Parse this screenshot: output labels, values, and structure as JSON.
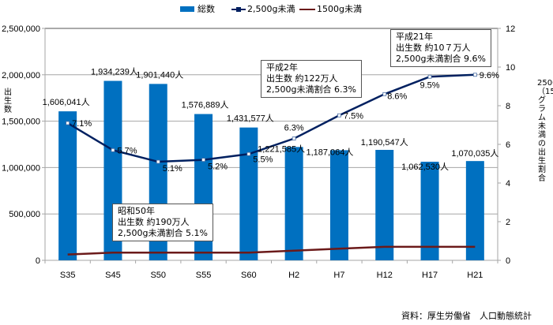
{
  "chart_data": {
    "type": "bar",
    "categories": [
      "S35",
      "S45",
      "S50",
      "S55",
      "S60",
      "H2",
      "H7",
      "H12",
      "H17",
      "H21"
    ],
    "series": [
      {
        "name": "総数",
        "type": "bar",
        "axis": "left",
        "color": "#0070C0",
        "values": [
          1606041,
          1934239,
          1901440,
          1576889,
          1431577,
          1221585,
          1187064,
          1190547,
          1062530,
          1070035
        ],
        "labels": [
          "1,606,041人",
          "1,934,239人",
          "1,901,440人",
          "1,576,889人",
          "1,431,577人",
          "1,221,585人",
          "1,187,064人",
          "1,190,547人",
          "1,062,530人",
          "1,070,035人"
        ]
      },
      {
        "name": "2,500g未満",
        "type": "line",
        "axis": "right",
        "color": "#002060",
        "marker": "square",
        "values": [
          7.1,
          5.7,
          5.1,
          5.2,
          5.5,
          6.3,
          7.5,
          8.6,
          9.5,
          9.6
        ],
        "labels": [
          "7.1%",
          "5.7%",
          "5.1%",
          "5.2%",
          "5.5%",
          "6.3%",
          "7.5%",
          "8.6%",
          "9.5%",
          "9.6%"
        ]
      },
      {
        "name": "1500g未満",
        "type": "line",
        "axis": "right",
        "color": "#6B1A1A",
        "values": [
          0.3,
          0.4,
          0.4,
          0.4,
          0.4,
          0.5,
          0.6,
          0.7,
          0.7,
          0.7
        ]
      }
    ],
    "ylabel": "出生数",
    "y2label": "2500（1500）グラム未満の出生割合",
    "ylim": [
      0,
      2500000
    ],
    "y2lim": [
      0,
      12
    ],
    "yticks": [
      "0",
      "500,000",
      "1,000,000",
      "1,500,000",
      "2,000,000",
      "2,500,000"
    ],
    "y2ticks": [
      "0",
      "2",
      "4",
      "6",
      "8",
      "10",
      "12"
    ],
    "grid": true,
    "legend": "top-center",
    "annotations": [
      {
        "lines": [
          "昭和50年",
          "出生数 約190万人",
          "2,500g未満割合 5.1%"
        ]
      },
      {
        "lines": [
          "平成2年",
          "出生数 約122万人",
          "2,500g未満割合 6.3%"
        ]
      },
      {
        "lines": [
          "平成21年",
          "出生数 約10７万人",
          "2,500g未満割合 9.6%"
        ]
      }
    ]
  },
  "source": "資料：厚生労働省　人口動態統計"
}
